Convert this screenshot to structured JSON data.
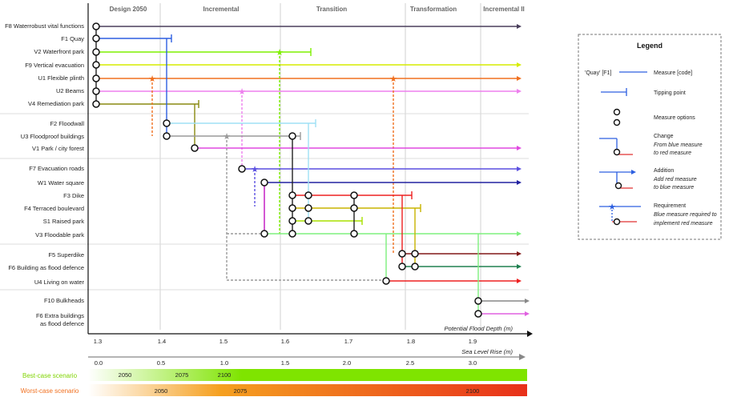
{
  "headers": [
    "Design 2050",
    "Incremental",
    "Transition",
    "Transformation",
    "Incremental II"
  ],
  "measures": [
    "F8 Waterrobust vital functions",
    "F1 Quay",
    "V2 Waterfront park",
    "F9 Vertical evacuation",
    "U1 Flexible plinth",
    "U2 Beams",
    "V4 Remediation park",
    "F2 Floodwall",
    "U3 Floodproof buildings",
    "V1 Park / city forest",
    "F7 Evacuation roads",
    "W1 Water square",
    "F3 Dike",
    "F4 Terraced boulevard",
    "S1 Raised park",
    "V3 Floodable park",
    "F5 Superdike",
    "F6 Building as flood defence",
    "U4 Living on water",
    "F10 Bulkheads",
    "F6 Extra buildings",
    "as flood defence"
  ],
  "axis_flood": {
    "label": "Potential Flood Depth (m)",
    "ticks": [
      "1.3",
      "1.4",
      "1.5",
      "1.6",
      "1.7",
      "1.8",
      "1.9"
    ]
  },
  "axis_slr": {
    "label": "Sea Level Rise (m)",
    "ticks": [
      "0.0",
      "0.5",
      "1.0",
      "1.5",
      "2.0",
      "2.5",
      "3.0"
    ]
  },
  "scenarios": {
    "best": {
      "label": "Best-case scenario",
      "years": [
        "2050",
        "2075",
        "2100"
      ],
      "color": "#7fe400"
    },
    "worst": {
      "label": "Worst-case scenario",
      "years": [
        "2050",
        "2075",
        "2100"
      ],
      "color": "#f07020"
    }
  },
  "legend": {
    "title": "Legend",
    "quay": "'Quay' [F1]",
    "measure_code": "Measure [code]",
    "tipping": "Tipping point",
    "options": "Measure options",
    "change": "Change",
    "change_desc1": "From blue measure",
    "change_desc2": "to red measure",
    "addition": "Addition",
    "addition_desc1": "Add red measure",
    "addition_desc2": "to blue measure",
    "requirement": "Requirement",
    "requirement_desc1": "Blue measure required to",
    "requirement_desc2": "implement red measure"
  },
  "colors": {
    "blue": "#2050e0",
    "red": "#e03030",
    "green": "#7ef000",
    "orange": "#f07020",
    "grey": "#555555"
  }
}
